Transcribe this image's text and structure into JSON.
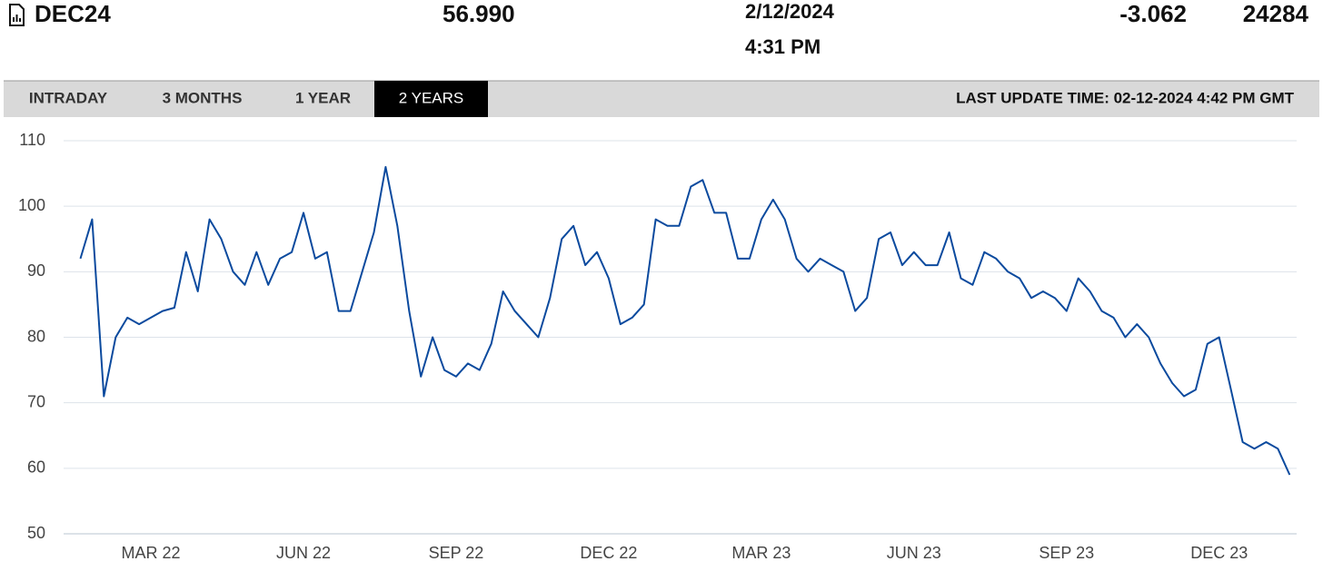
{
  "header": {
    "symbol": "DEC24",
    "price": "56.990",
    "date": "2/12/2024",
    "time": "4:31 PM",
    "change": "-3.062",
    "volume": "24284"
  },
  "tabs": [
    "INTRADAY",
    "3 MONTHS",
    "1 YEAR",
    "2 YEARS"
  ],
  "active_tab": 3,
  "last_update": "LAST UPDATE TIME: 02-12-2024 4:42 PM GMT",
  "chart_data": {
    "type": "line",
    "color": "#0b4a9e",
    "grid": true,
    "ylim": [
      50,
      110
    ],
    "yticks": [
      50,
      60,
      70,
      80,
      90,
      100,
      110
    ],
    "categories": [
      null,
      null,
      null,
      null,
      null,
      null,
      "MAR 22",
      null,
      null,
      null,
      null,
      null,
      null,
      null,
      null,
      null,
      null,
      null,
      null,
      "JUN 22",
      null,
      null,
      null,
      null,
      null,
      null,
      null,
      null,
      null,
      null,
      null,
      null,
      "SEP 22",
      null,
      null,
      null,
      null,
      null,
      null,
      null,
      null,
      null,
      null,
      null,
      null,
      "DEC 22",
      null,
      null,
      null,
      null,
      null,
      null,
      null,
      null,
      null,
      null,
      null,
      null,
      "MAR 23",
      null,
      null,
      null,
      null,
      null,
      null,
      null,
      null,
      null,
      null,
      null,
      null,
      "JUN 23",
      null,
      null,
      null,
      null,
      null,
      null,
      null,
      null,
      null,
      null,
      null,
      null,
      "SEP 23",
      null,
      null,
      null,
      null,
      null,
      null,
      null,
      null,
      null,
      null,
      null,
      null,
      "DEC 23",
      null,
      null,
      null,
      null,
      null,
      null
    ],
    "values": [
      92,
      98,
      71,
      80,
      83,
      82,
      83,
      84,
      84.5,
      93,
      87,
      98,
      95,
      90,
      88,
      93,
      88,
      92,
      93,
      99,
      92,
      93,
      84,
      84,
      90,
      96,
      106,
      97,
      84,
      74,
      80,
      75,
      74,
      76,
      75,
      79,
      87,
      84,
      82,
      80,
      86,
      95,
      97,
      91,
      93,
      89,
      82,
      83,
      85,
      98,
      97,
      97,
      103,
      104,
      99,
      99,
      92,
      92,
      98,
      101,
      98,
      92,
      90,
      92,
      91,
      90,
      84,
      86,
      95,
      96,
      91,
      93,
      91,
      91,
      96,
      89,
      88,
      93,
      92,
      90,
      89,
      86,
      87,
      86,
      84,
      89,
      87,
      84,
      83,
      80,
      82,
      80,
      76,
      73,
      71,
      72,
      79,
      80,
      72,
      64,
      63,
      64,
      63,
      59
    ]
  }
}
